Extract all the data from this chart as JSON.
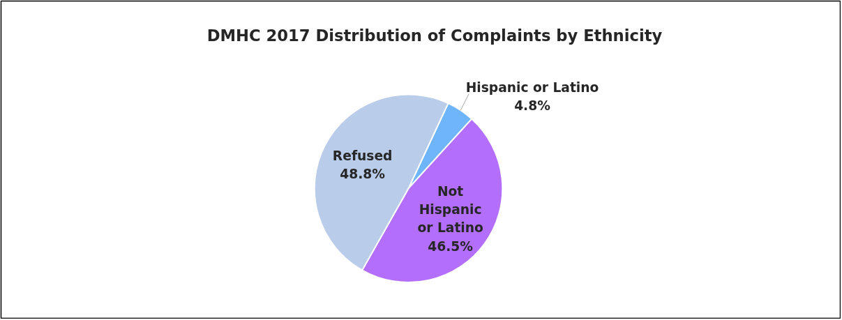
{
  "chart_data": {
    "type": "pie",
    "title": "DMHC 2017 Distribution of Complaints by Ethnicity",
    "categories": [
      "Hispanic or Latino",
      "Not Hispanic or Latino",
      "Refused"
    ],
    "values": [
      4.8,
      46.5,
      48.8
    ],
    "colors": [
      "#6fb5fc",
      "#b36ffc",
      "#b9cce9"
    ],
    "value_labels": [
      "4.8%",
      "46.5%",
      "48.8%"
    ]
  }
}
